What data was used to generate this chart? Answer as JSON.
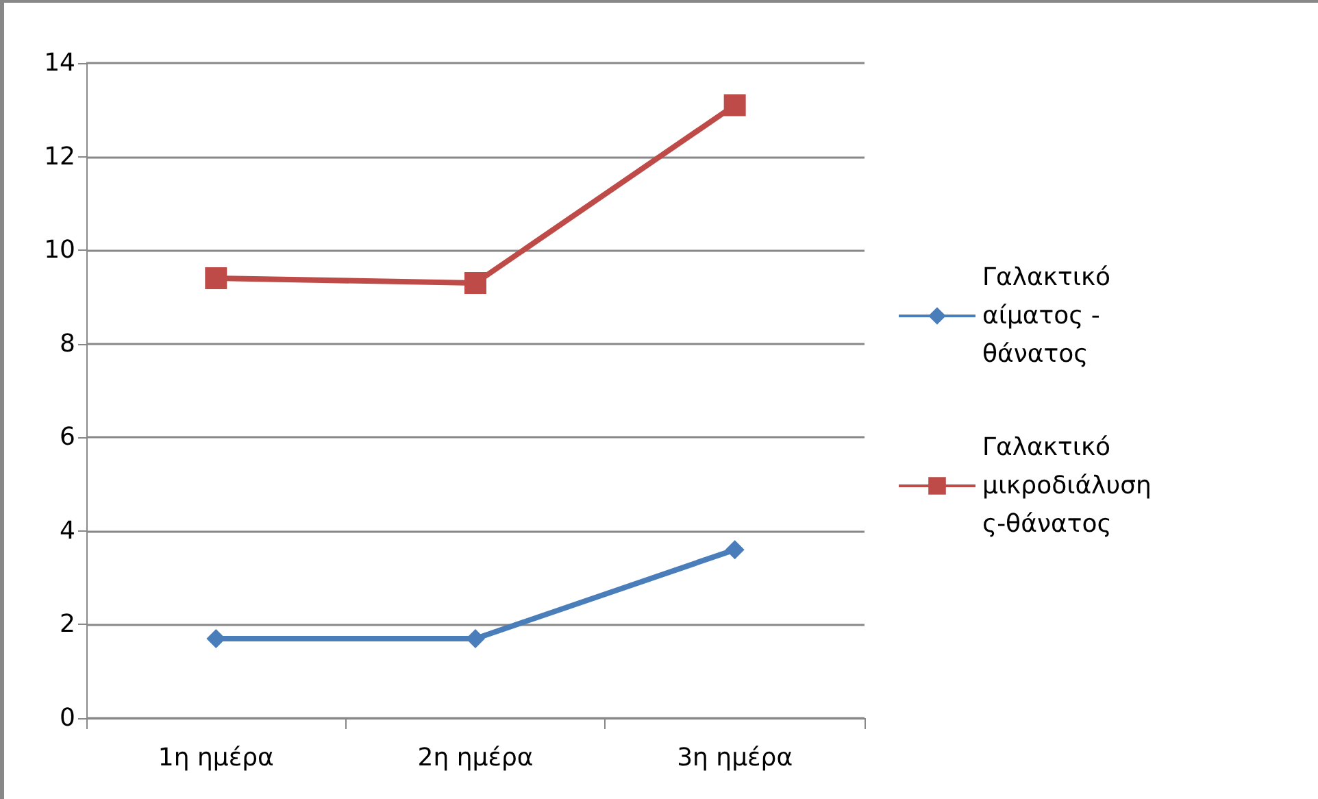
{
  "chart_data": {
    "type": "line",
    "categories": [
      "1η ημέρα",
      "2η ημέρα",
      "3η ημέρα"
    ],
    "series": [
      {
        "name": "Γαλακτικό αίματος - θάνατος",
        "color": "#4a7ebb",
        "marker": "diamond",
        "values": [
          1.7,
          1.7,
          3.6
        ]
      },
      {
        "name": "Γαλακτικό μικροδιάλυσης-θάνατος",
        "color": "#be4b48",
        "marker": "square",
        "values": [
          9.4,
          9.3,
          13.1
        ]
      }
    ],
    "ylim": [
      0,
      14
    ],
    "yticks": [
      0,
      2,
      4,
      6,
      8,
      10,
      12,
      14
    ],
    "grid": "y",
    "legend": "right"
  }
}
